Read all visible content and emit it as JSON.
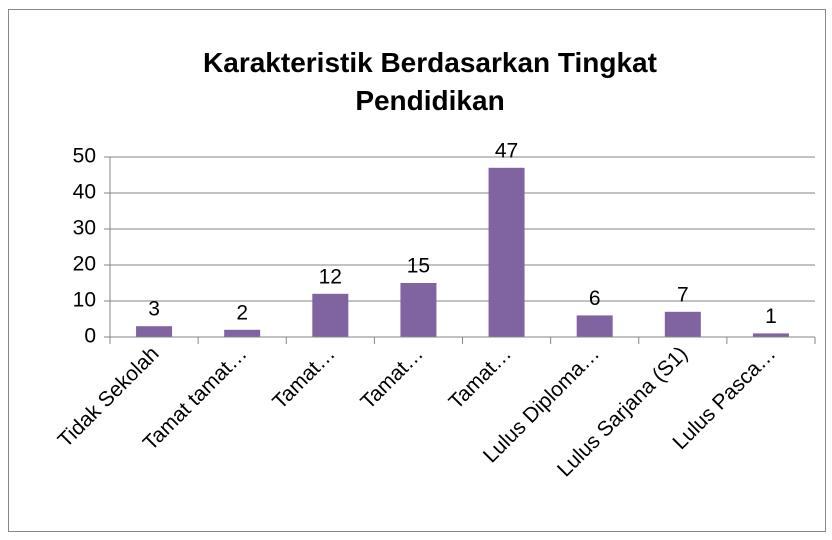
{
  "chart_data": {
    "type": "bar",
    "title": "Karakteristik Berdasarkan Tingkat Pendidikan",
    "categories": [
      "Tidak Sekolah",
      "Tamat tamat…",
      "Tamat…",
      "Tamat…",
      "Tamat…",
      "Lulus Diploma…",
      "Lulus Sarjana (S1)",
      "Lulus Pasca…"
    ],
    "values": [
      3,
      2,
      12,
      15,
      47,
      6,
      7,
      1
    ],
    "color": "#8064a2",
    "ylim": [
      0,
      50
    ],
    "yticks": [
      0,
      10,
      20,
      30,
      40,
      50
    ],
    "grid": true
  }
}
